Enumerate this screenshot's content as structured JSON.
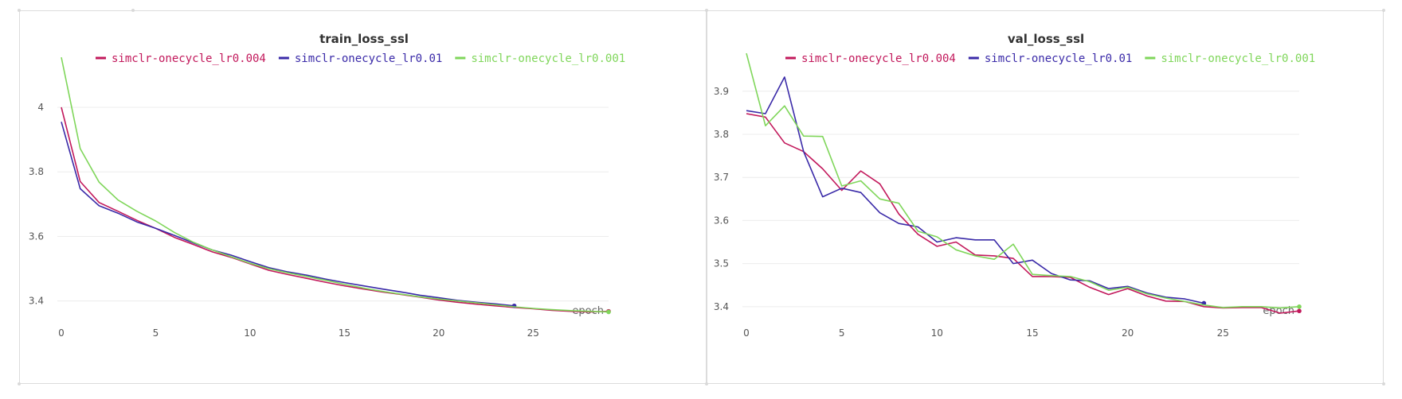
{
  "chart_data": [
    {
      "type": "line",
      "title": "train_loss_ssl",
      "xlabel": "epoch",
      "ylabel": "",
      "xlim": [
        0,
        29
      ],
      "ylim": [
        3.345,
        4.17
      ],
      "xticks": [
        0,
        5,
        10,
        15,
        20,
        25
      ],
      "yticks": [
        3.4,
        3.6,
        3.8,
        4
      ],
      "grid": true,
      "legend_position": "top",
      "series": [
        {
          "name": "simclr-onecycle_lr0.004",
          "color": "#c2185b",
          "x": [
            0,
            1,
            2,
            3,
            4,
            5,
            6,
            7,
            8,
            9,
            10,
            11,
            12,
            13,
            14,
            15,
            16,
            17,
            18,
            19,
            20,
            21,
            22,
            23,
            24,
            25,
            26,
            27,
            28,
            29
          ],
          "y": [
            4.0,
            3.77,
            3.705,
            3.678,
            3.65,
            3.625,
            3.597,
            3.575,
            3.552,
            3.535,
            3.515,
            3.495,
            3.482,
            3.47,
            3.458,
            3.447,
            3.437,
            3.428,
            3.42,
            3.412,
            3.403,
            3.396,
            3.39,
            3.385,
            3.38,
            3.376,
            3.371,
            3.368,
            3.366,
            3.368
          ],
          "end_marker": true
        },
        {
          "name": "simclr-onecycle_lr0.01",
          "color": "#3a2aa8",
          "x": [
            0,
            1,
            2,
            3,
            4,
            5,
            6,
            7,
            8,
            9,
            10,
            11,
            12,
            13,
            14,
            15,
            16,
            17,
            18,
            19,
            20,
            21,
            22,
            23,
            24
          ],
          "y": [
            3.955,
            3.748,
            3.695,
            3.672,
            3.645,
            3.625,
            3.603,
            3.58,
            3.558,
            3.542,
            3.522,
            3.503,
            3.49,
            3.48,
            3.468,
            3.457,
            3.447,
            3.437,
            3.428,
            3.418,
            3.41,
            3.402,
            3.396,
            3.391,
            3.385
          ],
          "end_marker": true
        },
        {
          "name": "simclr-onecycle_lr0.001",
          "color": "#7fd65a",
          "x": [
            0,
            1,
            2,
            3,
            4,
            5,
            6,
            7,
            8,
            9,
            10,
            11,
            12,
            13,
            14,
            15,
            16,
            17,
            18,
            19,
            20,
            21,
            22,
            23,
            24,
            25,
            26,
            27,
            28,
            29
          ],
          "y": [
            4.155,
            3.872,
            3.768,
            3.713,
            3.678,
            3.648,
            3.612,
            3.582,
            3.558,
            3.537,
            3.517,
            3.5,
            3.487,
            3.476,
            3.464,
            3.452,
            3.44,
            3.43,
            3.421,
            3.413,
            3.406,
            3.4,
            3.394,
            3.388,
            3.382,
            3.377,
            3.373,
            3.37,
            3.368,
            3.366
          ],
          "end_marker": true
        }
      ]
    },
    {
      "type": "line",
      "title": "val_loss_ssl",
      "xlabel": "epoch",
      "ylabel": "",
      "xlim": [
        0,
        29
      ],
      "ylim": [
        3.372,
        3.99
      ],
      "xticks": [
        0,
        5,
        10,
        15,
        20,
        25
      ],
      "yticks": [
        3.4,
        3.5,
        3.6,
        3.7,
        3.8,
        3.9
      ],
      "grid": true,
      "legend_position": "top",
      "series": [
        {
          "name": "simclr-onecycle_lr0.004",
          "color": "#c2185b",
          "x": [
            0,
            1,
            2,
            3,
            4,
            5,
            6,
            7,
            8,
            9,
            10,
            11,
            12,
            13,
            14,
            15,
            16,
            17,
            18,
            19,
            20,
            21,
            22,
            23,
            24,
            25,
            26,
            27,
            28,
            29
          ],
          "y": [
            3.848,
            3.84,
            3.78,
            3.76,
            3.72,
            3.67,
            3.715,
            3.685,
            3.615,
            3.568,
            3.54,
            3.55,
            3.52,
            3.518,
            3.512,
            3.47,
            3.47,
            3.468,
            3.445,
            3.428,
            3.442,
            3.425,
            3.413,
            3.412,
            3.4,
            3.397,
            3.398,
            3.398,
            3.385,
            3.39
          ],
          "end_marker": true
        },
        {
          "name": "simclr-onecycle_lr0.01",
          "color": "#3a2aa8",
          "x": [
            0,
            1,
            2,
            3,
            4,
            5,
            6,
            7,
            8,
            9,
            10,
            11,
            12,
            13,
            14,
            15,
            16,
            17,
            18,
            19,
            20,
            21,
            22,
            23,
            24
          ],
          "y": [
            3.855,
            3.848,
            3.933,
            3.76,
            3.655,
            3.675,
            3.665,
            3.618,
            3.593,
            3.585,
            3.55,
            3.56,
            3.555,
            3.555,
            3.5,
            3.508,
            3.477,
            3.462,
            3.46,
            3.442,
            3.447,
            3.432,
            3.422,
            3.418,
            3.408
          ],
          "end_marker": true
        },
        {
          "name": "simclr-onecycle_lr0.001",
          "color": "#7fd65a",
          "x": [
            0,
            1,
            2,
            3,
            4,
            5,
            6,
            7,
            8,
            9,
            10,
            11,
            12,
            13,
            14,
            15,
            16,
            17,
            18,
            19,
            20,
            21,
            22,
            23,
            24,
            25,
            26,
            27,
            28,
            29
          ],
          "y": [
            3.988,
            3.82,
            3.866,
            3.796,
            3.795,
            3.68,
            3.692,
            3.65,
            3.64,
            3.575,
            3.562,
            3.532,
            3.518,
            3.51,
            3.545,
            3.475,
            3.472,
            3.47,
            3.458,
            3.438,
            3.445,
            3.43,
            3.42,
            3.412,
            3.404,
            3.398,
            3.4,
            3.4,
            3.397,
            3.4
          ],
          "end_marker": true
        }
      ]
    }
  ]
}
